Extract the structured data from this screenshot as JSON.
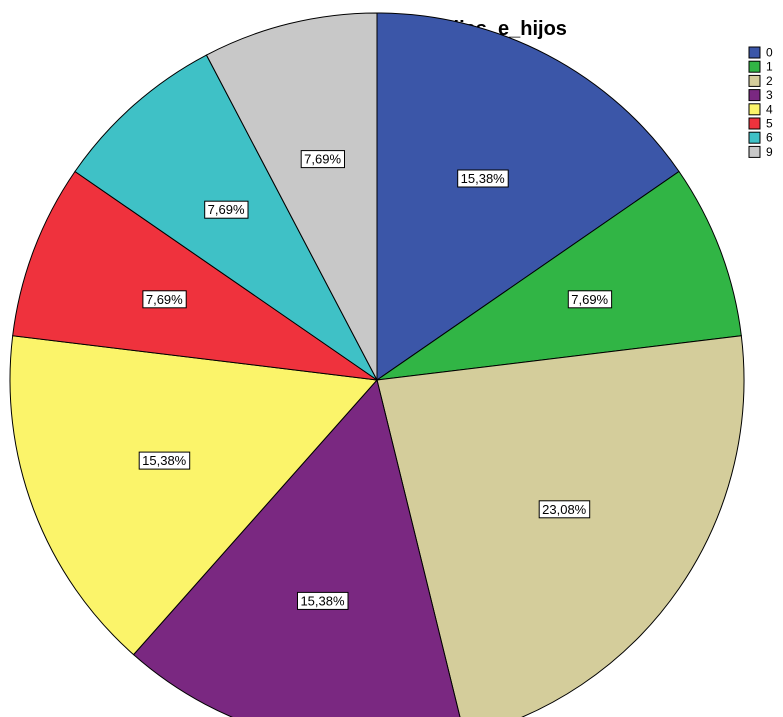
{
  "chart_data": {
    "type": "pie",
    "title": "Hijas_e_hijos",
    "start_angle_deg": 0,
    "direction": "clockwise",
    "legend_position": "top-right",
    "slices": [
      {
        "label": "0",
        "value": 15.38,
        "display": "15,38%",
        "color": "#3b56a8"
      },
      {
        "label": "1",
        "value": 7.69,
        "display": "7,69%",
        "color": "#31b545"
      },
      {
        "label": "2",
        "value": 23.08,
        "display": "23,08%",
        "color": "#d4cd9b"
      },
      {
        "label": "3",
        "value": 15.38,
        "display": "15,38%",
        "color": "#7a2881"
      },
      {
        "label": "4",
        "value": 15.38,
        "display": "15,38%",
        "color": "#fbf46a"
      },
      {
        "label": "5",
        "value": 7.69,
        "display": "7,69%",
        "color": "#ef323d"
      },
      {
        "label": "6",
        "value": 7.69,
        "display": "7,69%",
        "color": "#3fc1c6"
      },
      {
        "label": "9",
        "value": 7.69,
        "display": "7,69%",
        "color": "#c8c8c8"
      }
    ]
  }
}
